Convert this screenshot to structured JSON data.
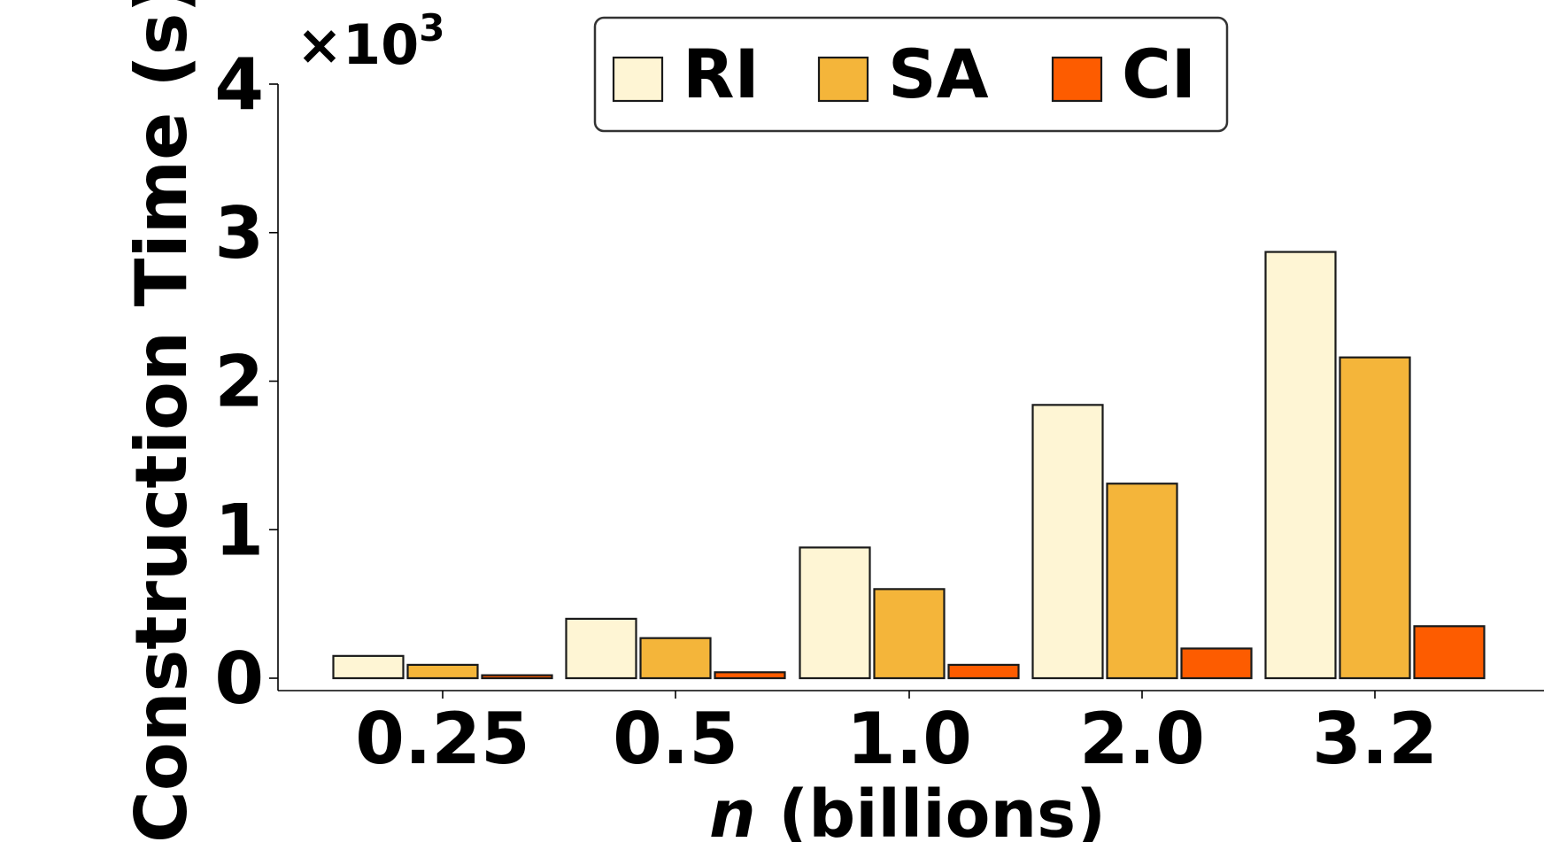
{
  "chart_data": {
    "type": "bar",
    "title": "",
    "xlabel_italic": "n",
    "xlabel_rest": " (billions)",
    "ylabel": "Construction Time (s)",
    "y_multiplier": {
      "base": "×10",
      "exponent": "3"
    },
    "categories": [
      "0.25",
      "0.5",
      "1.0",
      "2.0",
      "3.2"
    ],
    "ylim": [
      0,
      4
    ],
    "yticks": [
      "0",
      "1",
      "2",
      "3",
      "4"
    ],
    "legend_position": "top-center",
    "series": [
      {
        "name": "RI",
        "color": "#fef5d4",
        "values": [
          0.15,
          0.4,
          0.88,
          1.84,
          2.87
        ]
      },
      {
        "name": "SA",
        "color": "#f4b53a",
        "values": [
          0.09,
          0.27,
          0.6,
          1.31,
          2.16
        ]
      },
      {
        "name": "CI",
        "color": "#fd5c00",
        "values": [
          0.02,
          0.04,
          0.09,
          0.2,
          0.35
        ]
      }
    ]
  }
}
